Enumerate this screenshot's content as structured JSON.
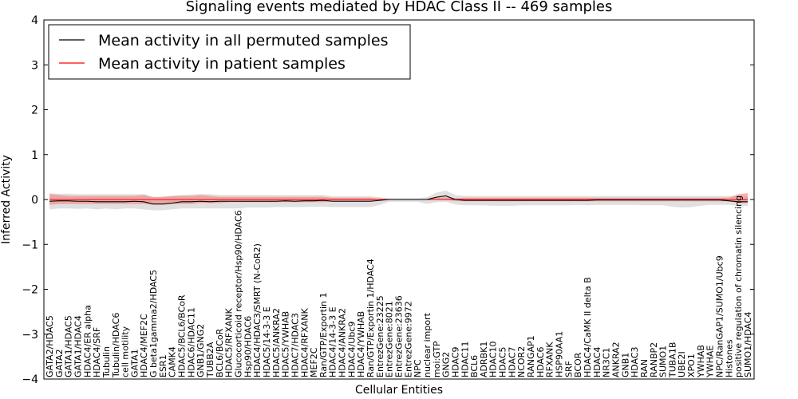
{
  "chart_data": {
    "type": "line",
    "title": "Signaling events mediated by HDAC Class II -- 469 samples",
    "xlabel": "Cellular Entities",
    "ylabel": "Inferred Activity",
    "ylim": [
      -4,
      4
    ],
    "yticks": [
      -4,
      -3,
      -2,
      -1,
      0,
      1,
      2,
      3,
      4
    ],
    "legend": {
      "position": "top-left",
      "entries": [
        {
          "label": "Mean activity in all permuted samples",
          "color": "#000000"
        },
        {
          "label": "Mean activity in patient samples",
          "color": "#ff0000"
        }
      ]
    },
    "categories": [
      "GATA2/HDAC5",
      "GATA2",
      "GATA1/HDAC5",
      "GATA1/HDAC4",
      "HDAC4/ER alpha",
      "HDAC4/SRF",
      "Tubulin",
      "Tubulin/HDAC6",
      "cell motility",
      "GATA1",
      "HDAC4/MEF2C",
      "G beta1gamma2/HDAC5",
      "ESR1",
      "CAMK4",
      "HDAC5/BCL6/BCoR",
      "HDAC6/HDAC11",
      "GNB1/GNG2",
      "TUBB2A",
      "BCL6/BCoR",
      "HDAC5/RFXANK",
      "Glucocorticoid receptor/Hsp90/HDAC6",
      "Hsp90/HDAC6",
      "HDAC4/HDAC3/SMRT (N-CoR2)",
      "HDAC5/14-3-3 E",
      "HDAC5/ANKRA2",
      "HDAC5/YWHAB",
      "HDAC7/HDAC3",
      "HDAC4/RFXANK",
      "MEF2C",
      "Ran/GTP/Exportin 1",
      "HDAC4/14-3-3 E",
      "HDAC4/ANKRA2",
      "HDAC4/Ubc9",
      "HDAC4/YWHAB",
      "Ran/GTP/Exportin 1/HDAC4",
      "EntrezGene:23225",
      "EntrezGene:8021",
      "EntrezGene:23636",
      "EntrezGene:9972",
      "NPC",
      "nuclear import",
      "moi:GTP",
      "GNG2",
      "HDAC9",
      "HDAC11",
      "BCL6",
      "ADRBK1",
      "HDAC10",
      "HDAC5",
      "HDAC7",
      "NCOR2",
      "RANGAP1",
      "HDAC6",
      "RFXANK",
      "HSP90AA1",
      "SRF",
      "BCOR",
      "HDAC4/CaMK II delta B",
      "HDAC4",
      "NR3C1",
      "ANKRA2",
      "GNB1",
      "HDAC3",
      "RAN",
      "RANBP2",
      "SUMO1",
      "TUBA1B",
      "UBE2I",
      "XPO1",
      "YWHAB",
      "YWHAE",
      "NPC/RanGAP1/SUMO1/Ubc9",
      "Histones",
      "positive regulation of chromatin silencing",
      "SUMO1/HDAC4"
    ],
    "series": [
      {
        "name": "Mean activity in all permuted samples",
        "color": "#000000",
        "values": [
          -0.04,
          -0.03,
          -0.03,
          -0.04,
          -0.04,
          -0.05,
          -0.05,
          -0.05,
          -0.05,
          -0.04,
          -0.05,
          -0.1,
          -0.1,
          -0.08,
          -0.05,
          -0.05,
          -0.04,
          -0.05,
          -0.04,
          -0.04,
          -0.04,
          -0.04,
          -0.04,
          -0.04,
          -0.04,
          -0.03,
          -0.04,
          -0.03,
          -0.03,
          -0.02,
          -0.04,
          -0.04,
          -0.04,
          -0.04,
          -0.04,
          -0.02,
          0.0,
          0.0,
          0.0,
          0.0,
          0.0,
          0.05,
          0.08,
          0.0,
          -0.02,
          -0.02,
          -0.02,
          -0.02,
          -0.02,
          -0.02,
          -0.02,
          -0.02,
          -0.02,
          -0.02,
          -0.02,
          -0.02,
          -0.02,
          -0.02,
          -0.01,
          -0.01,
          -0.01,
          -0.01,
          -0.01,
          -0.01,
          -0.01,
          -0.01,
          -0.01,
          -0.01,
          -0.01,
          -0.01,
          -0.01,
          -0.01,
          -0.03,
          -0.05,
          -0.05
        ]
      },
      {
        "name": "Mean activity in patient samples",
        "color": "#ff0000",
        "values": [
          0.0,
          0.0,
          0.0,
          0.0,
          0.0,
          0.0,
          0.0,
          0.0,
          0.0,
          0.0,
          0.0,
          0.0,
          0.0,
          0.0,
          0.0,
          0.0,
          0.0,
          0.0,
          0.0,
          0.0,
          0.0,
          0.0,
          0.0,
          0.0,
          0.0,
          0.0,
          0.0,
          0.0,
          0.0,
          0.0,
          0.0,
          0.0,
          0.0,
          0.0,
          0.0,
          0.0,
          0.0,
          0.0,
          0.0,
          0.0,
          0.0,
          0.0,
          0.0,
          0.0,
          0.0,
          0.0,
          0.0,
          0.0,
          0.0,
          0.0,
          0.0,
          0.0,
          0.0,
          0.0,
          0.0,
          0.0,
          0.0,
          0.0,
          0.0,
          0.0,
          0.0,
          0.0,
          0.0,
          0.0,
          0.0,
          0.0,
          0.0,
          0.0,
          0.0,
          0.0,
          0.0,
          0.0,
          0.0,
          0.0,
          0.0
        ]
      }
    ],
    "bands": [
      {
        "name": "permuted range",
        "color": "#bbbbbb",
        "lower": [
          -0.22,
          -0.2,
          -0.2,
          -0.21,
          -0.2,
          -0.22,
          -0.2,
          -0.22,
          -0.2,
          -0.2,
          -0.22,
          -0.24,
          -0.24,
          -0.22,
          -0.2,
          -0.2,
          -0.2,
          -0.2,
          -0.2,
          -0.2,
          -0.2,
          -0.18,
          -0.18,
          -0.18,
          -0.17,
          -0.17,
          -0.17,
          -0.17,
          -0.16,
          -0.16,
          -0.17,
          -0.17,
          -0.17,
          -0.17,
          -0.17,
          -0.12,
          -0.05,
          -0.05,
          -0.05,
          -0.05,
          -0.1,
          -0.06,
          -0.05,
          -0.11,
          -0.13,
          -0.13,
          -0.13,
          -0.14,
          -0.14,
          -0.14,
          -0.13,
          -0.13,
          -0.13,
          -0.13,
          -0.13,
          -0.13,
          -0.12,
          -0.13,
          -0.12,
          -0.12,
          -0.12,
          -0.12,
          -0.12,
          -0.13,
          -0.13,
          -0.13,
          -0.16,
          -0.18,
          -0.17,
          -0.14,
          -0.12,
          -0.12,
          -0.12,
          -0.14,
          -0.14
        ],
        "upper": [
          0.14,
          0.13,
          0.13,
          0.12,
          0.12,
          0.12,
          0.12,
          0.12,
          0.12,
          0.12,
          0.12,
          0.06,
          0.06,
          0.08,
          0.1,
          0.11,
          0.12,
          0.12,
          0.1,
          0.1,
          0.1,
          0.1,
          0.1,
          0.1,
          0.1,
          0.1,
          0.1,
          0.1,
          0.1,
          0.1,
          0.07,
          0.07,
          0.07,
          0.07,
          0.07,
          0.05,
          0.03,
          0.03,
          0.03,
          0.03,
          0.05,
          0.15,
          0.2,
          0.1,
          0.08,
          0.08,
          0.08,
          0.08,
          0.08,
          0.08,
          0.08,
          0.08,
          0.08,
          0.08,
          0.08,
          0.08,
          0.08,
          0.08,
          0.08,
          0.08,
          0.08,
          0.08,
          0.08,
          0.08,
          0.08,
          0.08,
          0.08,
          0.08,
          0.08,
          0.08,
          0.08,
          0.08,
          0.08,
          0.08,
          0.08
        ]
      },
      {
        "name": "patient range",
        "color": "#f08080",
        "lower": [
          -0.12,
          -0.1,
          -0.1,
          -0.1,
          -0.1,
          -0.1,
          -0.1,
          -0.1,
          -0.1,
          -0.1,
          -0.1,
          -0.12,
          -0.12,
          -0.1,
          -0.1,
          -0.1,
          -0.08,
          -0.08,
          -0.08,
          -0.06,
          -0.06,
          -0.06,
          -0.06,
          -0.06,
          -0.06,
          -0.06,
          -0.06,
          -0.06,
          -0.06,
          -0.06,
          -0.04,
          -0.04,
          -0.04,
          -0.04,
          -0.04,
          -0.02,
          -0.01,
          -0.01,
          -0.01,
          -0.01,
          -0.01,
          -0.01,
          -0.01,
          -0.03,
          -0.04,
          -0.04,
          -0.04,
          -0.04,
          -0.04,
          -0.04,
          -0.04,
          -0.04,
          -0.04,
          -0.04,
          -0.04,
          -0.04,
          -0.04,
          -0.04,
          -0.04,
          -0.04,
          -0.04,
          -0.04,
          -0.04,
          -0.04,
          -0.04,
          -0.04,
          -0.04,
          -0.04,
          -0.04,
          -0.04,
          -0.04,
          -0.04,
          -0.04,
          -0.08,
          -0.08
        ],
        "upper": [
          0.12,
          0.1,
          0.08,
          0.08,
          0.08,
          0.08,
          0.08,
          0.08,
          0.08,
          0.08,
          0.1,
          0.05,
          0.06,
          0.08,
          0.08,
          0.08,
          0.1,
          0.08,
          0.06,
          0.06,
          0.06,
          0.06,
          0.06,
          0.06,
          0.06,
          0.06,
          0.06,
          0.06,
          0.06,
          0.06,
          0.04,
          0.04,
          0.04,
          0.04,
          0.04,
          0.02,
          0.01,
          0.01,
          0.01,
          0.01,
          0.01,
          0.03,
          0.05,
          0.03,
          0.04,
          0.04,
          0.04,
          0.04,
          0.04,
          0.04,
          0.04,
          0.04,
          0.04,
          0.04,
          0.04,
          0.04,
          0.04,
          0.04,
          0.04,
          0.04,
          0.04,
          0.04,
          0.04,
          0.04,
          0.04,
          0.04,
          0.04,
          0.04,
          0.04,
          0.04,
          0.04,
          0.04,
          0.04,
          0.12,
          0.14
        ]
      }
    ]
  }
}
